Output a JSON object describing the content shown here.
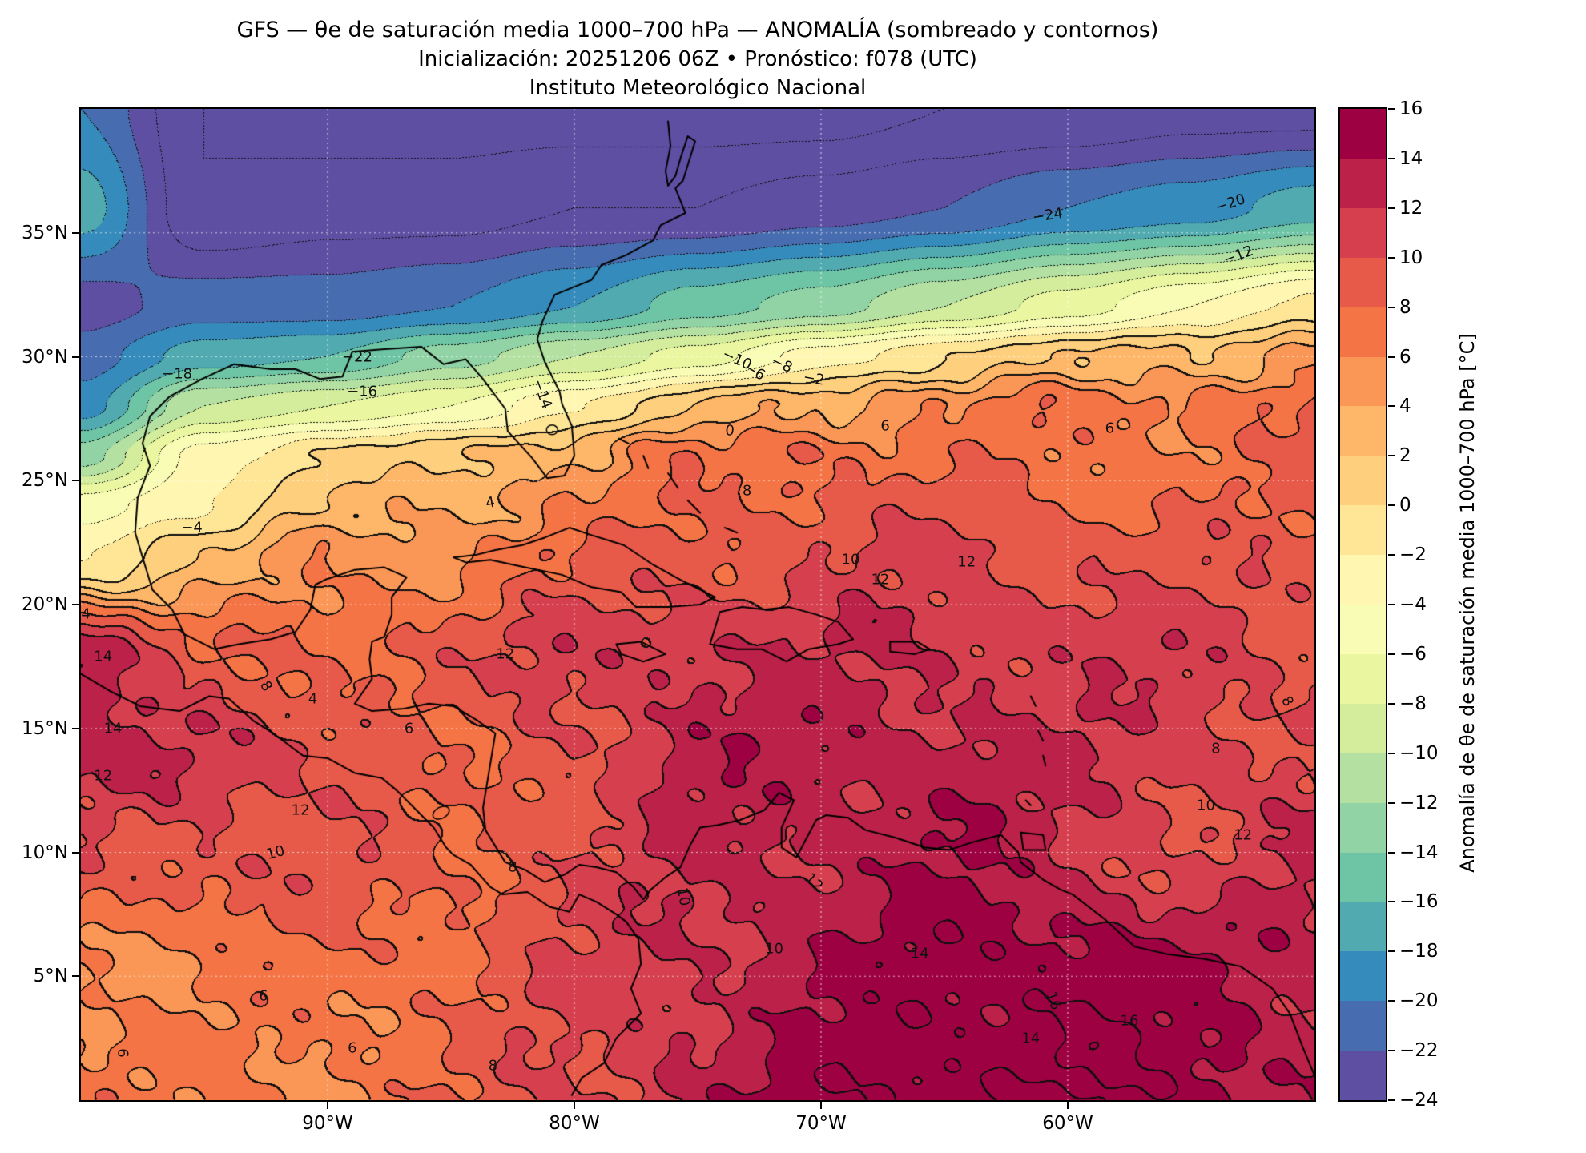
{
  "chart_data": {
    "type": "heatmap",
    "subtype": "filled-contour-map",
    "title": "GFS — θe de saturación media 1000–700 hPa — ANOMALÍA (sombreado y contornos)",
    "subtitle": "Inicialización: 20251206 06Z   •   Pronóstico: f078 (UTC)",
    "institution": "Instituto Meteorológico Nacional",
    "lon_range": [
      -100,
      -50
    ],
    "lat_range": [
      0,
      40
    ],
    "levels_min": -24,
    "levels_max": 16,
    "level_step": 2,
    "grid_on": true,
    "x_ticks": [
      {
        "value": -90,
        "label": "90°W"
      },
      {
        "value": -80,
        "label": "80°W"
      },
      {
        "value": -70,
        "label": "70°W"
      },
      {
        "value": -60,
        "label": "60°W"
      }
    ],
    "y_ticks": [
      {
        "value": 5,
        "label": "5°N"
      },
      {
        "value": 10,
        "label": "10°N"
      },
      {
        "value": 15,
        "label": "15°N"
      },
      {
        "value": 20,
        "label": "20°N"
      },
      {
        "value": 25,
        "label": "25°N"
      },
      {
        "value": 30,
        "label": "30°N"
      },
      {
        "value": 35,
        "label": "35°N"
      }
    ],
    "colors": [
      "#5e4fa2",
      "#476db0",
      "#358bbc",
      "#50aaaf",
      "#6ec5a5",
      "#91d3a4",
      "#b4e1a2",
      "#d3ed9c",
      "#ebf7a0",
      "#f8fcb5",
      "#fff7b1",
      "#ffe696",
      "#fed07e",
      "#feb668",
      "#fa9656",
      "#f57446",
      "#e75948",
      "#d6404e",
      "#bb2149",
      "#9e0142"
    ],
    "colorbar": {
      "label": "Anomalía de θe de saturación media 1000–700 hPa [°C]",
      "ticks": [
        {
          "value": 16,
          "label": "16"
        },
        {
          "value": 14,
          "label": "14"
        },
        {
          "value": 12,
          "label": "12"
        },
        {
          "value": 10,
          "label": "10"
        },
        {
          "value": 8,
          "label": "8"
        },
        {
          "value": 6,
          "label": "6"
        },
        {
          "value": 4,
          "label": "4"
        },
        {
          "value": 2,
          "label": "2"
        },
        {
          "value": 0,
          "label": "0"
        },
        {
          "value": -2,
          "label": "−2"
        },
        {
          "value": -4,
          "label": "−4"
        },
        {
          "value": -6,
          "label": "−6"
        },
        {
          "value": -8,
          "label": "−8"
        },
        {
          "value": -10,
          "label": "−10"
        },
        {
          "value": -12,
          "label": "−12"
        },
        {
          "value": -14,
          "label": "−14"
        },
        {
          "value": -16,
          "label": "−16"
        },
        {
          "value": -18,
          "label": "−18"
        },
        {
          "value": -20,
          "label": "−20"
        },
        {
          "value": -22,
          "label": "−22"
        },
        {
          "value": -24,
          "label": "−24"
        }
      ]
    },
    "grid": {
      "lons": [
        -100,
        -95,
        -90,
        -85,
        -80,
        -75,
        -70,
        -65,
        -60,
        -55,
        -50
      ],
      "lats": [
        40,
        36,
        32,
        30,
        28,
        26,
        24,
        22,
        18,
        14,
        10,
        5,
        0
      ],
      "values": [
        [
          -20,
          -26,
          -27,
          -27,
          -27,
          -27,
          -27,
          -26,
          -26,
          -25,
          -25
        ],
        [
          -17,
          -26,
          -25,
          -25,
          -24,
          -24,
          -23,
          -22,
          -20,
          -19,
          -17
        ],
        [
          -23,
          -21,
          -21,
          -20,
          -18,
          -15,
          -13,
          -10,
          -7,
          -4,
          -1
        ],
        [
          -21,
          -17,
          -16,
          -13,
          -10,
          -7,
          -3,
          0,
          2,
          3,
          5
        ],
        [
          -19,
          -10,
          -8,
          -6,
          -2,
          2,
          4,
          6,
          7,
          7,
          8
        ],
        [
          -13,
          -3,
          0,
          2,
          4,
          7,
          8,
          7,
          7,
          7,
          8
        ],
        [
          -5,
          -2,
          2,
          4,
          6,
          8,
          9,
          9,
          8,
          8,
          8
        ],
        [
          -2,
          2,
          5,
          6,
          8,
          9,
          10,
          10,
          10,
          9,
          9
        ],
        [
          14,
          8,
          8,
          9,
          11,
          12,
          12,
          12,
          11,
          11,
          10
        ],
        [
          12,
          12,
          10,
          7,
          10,
          13,
          13,
          13,
          12,
          11,
          10
        ],
        [
          9,
          10,
          9,
          8,
          10,
          12,
          13,
          14,
          12,
          10,
          12
        ],
        [
          6,
          6,
          7,
          8,
          10,
          12,
          14,
          15,
          16,
          14,
          13
        ],
        [
          7,
          6,
          6,
          8,
          10,
          13,
          15,
          16,
          16,
          15,
          14
        ]
      ]
    },
    "texture": {
      "amplitude1": 1.3,
      "amplitude2": 0.8
    },
    "contour_labels": [
      {
        "t": "−24",
        "lon": -60.8,
        "lat": 35.7,
        "rot": -8
      },
      {
        "t": "−20",
        "lon": -53.4,
        "lat": 36.2,
        "rot": -18
      },
      {
        "t": "−12",
        "lon": -53.1,
        "lat": 34.1,
        "rot": -20
      },
      {
        "t": "−22",
        "lon": -88.8,
        "lat": 30.0,
        "rot": 0
      },
      {
        "t": "−18",
        "lon": -96.1,
        "lat": 29.3,
        "rot": 0
      },
      {
        "t": "−16",
        "lon": -88.6,
        "lat": 28.6,
        "rot": 0
      },
      {
        "t": "−14",
        "lon": -81.3,
        "lat": 28.5,
        "rot": 70
      },
      {
        "t": "−10",
        "lon": -73.4,
        "lat": 29.9,
        "rot": 25
      },
      {
        "t": "−8",
        "lon": -71.6,
        "lat": 29.7,
        "rot": 25
      },
      {
        "t": "−6",
        "lon": -72.7,
        "lat": 29.4,
        "rot": 30
      },
      {
        "t": "−2",
        "lon": -70.3,
        "lat": 29.1,
        "rot": 10
      },
      {
        "t": "0",
        "lon": -73.7,
        "lat": 27.0,
        "rot": 5
      },
      {
        "t": "6",
        "lon": -67.4,
        "lat": 27.2,
        "rot": 0
      },
      {
        "t": "6",
        "lon": -58.3,
        "lat": 27.1,
        "rot": 0
      },
      {
        "t": "4",
        "lon": -83.4,
        "lat": 24.1,
        "rot": -10
      },
      {
        "t": "8",
        "lon": -73.0,
        "lat": 24.6,
        "rot": 0
      },
      {
        "t": "10",
        "lon": -68.8,
        "lat": 21.8,
        "rot": 0
      },
      {
        "t": "12",
        "lon": -64.1,
        "lat": 21.7,
        "rot": 0
      },
      {
        "t": "12",
        "lon": -67.6,
        "lat": 21.0,
        "rot": 0
      },
      {
        "t": "−4",
        "lon": -95.5,
        "lat": 23.1,
        "rot": 0
      },
      {
        "t": "4",
        "lon": -99.8,
        "lat": 19.6,
        "rot": 0
      },
      {
        "t": "14",
        "lon": -99.1,
        "lat": 17.9,
        "rot": 0
      },
      {
        "t": "8",
        "lon": -92.5,
        "lat": 16.7,
        "rot": 60
      },
      {
        "t": "4",
        "lon": -90.6,
        "lat": 16.2,
        "rot": 0
      },
      {
        "t": "14",
        "lon": -98.7,
        "lat": 15.0,
        "rot": 0
      },
      {
        "t": "12",
        "lon": -99.1,
        "lat": 13.1,
        "rot": 0
      },
      {
        "t": "6",
        "lon": -86.7,
        "lat": 15.0,
        "rot": 0
      },
      {
        "t": "12",
        "lon": -82.8,
        "lat": 18.0,
        "rot": 0
      },
      {
        "t": "12",
        "lon": -91.1,
        "lat": 11.7,
        "rot": 0
      },
      {
        "t": "10",
        "lon": -92.1,
        "lat": 10.0,
        "rot": -15
      },
      {
        "t": "8",
        "lon": -82.5,
        "lat": 9.4,
        "rot": 0
      },
      {
        "t": "10",
        "lon": -75.6,
        "lat": 8.2,
        "rot": 80
      },
      {
        "t": "12",
        "lon": -70.3,
        "lat": 8.8,
        "rot": 45
      },
      {
        "t": "14",
        "lon": -66.0,
        "lat": 5.9,
        "rot": 0
      },
      {
        "t": "16",
        "lon": -60.6,
        "lat": 4.0,
        "rot": 70
      },
      {
        "t": "10",
        "lon": -54.4,
        "lat": 11.9,
        "rot": 0
      },
      {
        "t": "12",
        "lon": -52.9,
        "lat": 10.7,
        "rot": 0
      },
      {
        "t": "8",
        "lon": -54.0,
        "lat": 14.2,
        "rot": 0
      },
      {
        "t": "8",
        "lon": -51.1,
        "lat": 16.1,
        "rot": 60
      },
      {
        "t": "6",
        "lon": -92.6,
        "lat": 4.2,
        "rot": 0
      },
      {
        "t": "6",
        "lon": -98.3,
        "lat": 1.9,
        "rot": 90
      },
      {
        "t": "6",
        "lon": -89.0,
        "lat": 2.1,
        "rot": 0
      },
      {
        "t": "8",
        "lon": -83.3,
        "lat": 1.4,
        "rot": 0
      },
      {
        "t": "10",
        "lon": -71.9,
        "lat": 6.1,
        "rot": 0
      },
      {
        "t": "14",
        "lon": -61.5,
        "lat": 2.5,
        "rot": 0
      },
      {
        "t": "16",
        "lon": -57.5,
        "lat": 3.2,
        "rot": 0
      }
    ]
  }
}
